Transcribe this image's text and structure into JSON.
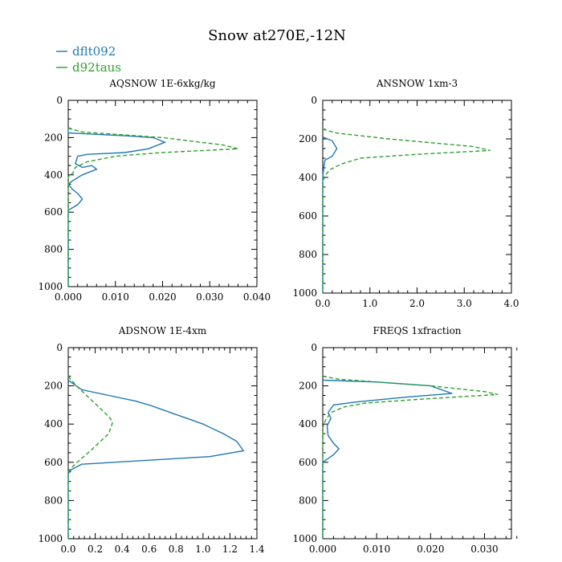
{
  "title": "Snow at270E,-12N",
  "legend": [
    {
      "name": "dflt092",
      "color": "#1f77b4",
      "dash": "solid"
    },
    {
      "name": "d92taus",
      "color": "#2ca02c",
      "dash": "dashed"
    }
  ],
  "chart_data": [
    {
      "type": "line",
      "title": "AQSNOW  1E-6xkg/kg",
      "xlim": [
        0,
        0.04
      ],
      "ylim": [
        0,
        1000
      ],
      "y_inverted": true,
      "xticks": [
        0,
        0.01,
        0.02,
        0.03,
        0.04
      ],
      "xtick_labels": [
        "0.000",
        "0.010",
        "0.020",
        "0.030",
        "0.040"
      ],
      "yticks": [
        0,
        200,
        400,
        600,
        800,
        1000
      ],
      "ytick_labels": [
        "0",
        "200",
        "400",
        "600",
        "800",
        "1000"
      ],
      "series": [
        {
          "name": "dflt092",
          "points": [
            [
              0,
              150
            ],
            [
              0,
              175
            ],
            [
              0.012,
              190
            ],
            [
              0.018,
              200
            ],
            [
              0.0205,
              225
            ],
            [
              0.017,
              260
            ],
            [
              0.012,
              280
            ],
            [
              0.004,
              290
            ],
            [
              0.002,
              300
            ],
            [
              0.0015,
              340
            ],
            [
              0.003,
              360
            ],
            [
              0.005,
              350
            ],
            [
              0.006,
              370
            ],
            [
              0.003,
              400
            ],
            [
              0.001,
              430
            ],
            [
              0,
              450
            ],
            [
              0.001,
              480
            ],
            [
              0.002,
              500
            ],
            [
              0.003,
              530
            ],
            [
              0.002,
              560
            ],
            [
              0,
              590
            ],
            [
              0,
              600
            ],
            [
              0,
              1000
            ]
          ]
        },
        {
          "name": "d92taus",
          "points": [
            [
              0,
              150
            ],
            [
              0.003,
              170
            ],
            [
              0.02,
              200
            ],
            [
              0.033,
              240
            ],
            [
              0.036,
              260
            ],
            [
              0.02,
              280
            ],
            [
              0.01,
              300
            ],
            [
              0.004,
              330
            ],
            [
              0.0015,
              360
            ],
            [
              0.001,
              390
            ],
            [
              0,
              410
            ],
            [
              0,
              1000
            ]
          ]
        }
      ]
    },
    {
      "type": "line",
      "title": "ANSNOW  1xm-3",
      "xlim": [
        0,
        4
      ],
      "ylim": [
        0,
        1000
      ],
      "y_inverted": true,
      "xticks": [
        0,
        1,
        2,
        3,
        4
      ],
      "xtick_labels": [
        "0.0",
        "1.0",
        "2.0",
        "3.0",
        "4.0"
      ],
      "yticks": [
        0,
        200,
        400,
        600,
        800,
        1000
      ],
      "ytick_labels": [
        "0",
        "200",
        "400",
        "600",
        "800",
        "1000"
      ],
      "series": [
        {
          "name": "dflt092",
          "points": [
            [
              0,
              190
            ],
            [
              0.2,
              210
            ],
            [
              0.3,
              250
            ],
            [
              0.2,
              290
            ],
            [
              0.05,
              310
            ],
            [
              0.02,
              350
            ],
            [
              0,
              400
            ],
            [
              0,
              1000
            ]
          ]
        },
        {
          "name": "d92taus",
          "points": [
            [
              0,
              150
            ],
            [
              0.3,
              170
            ],
            [
              1.4,
              200
            ],
            [
              3.2,
              240
            ],
            [
              3.55,
              260
            ],
            [
              2.0,
              280
            ],
            [
              0.8,
              300
            ],
            [
              0.4,
              330
            ],
            [
              0.15,
              360
            ],
            [
              0.05,
              390
            ],
            [
              0,
              420
            ],
            [
              0,
              1000
            ]
          ]
        }
      ]
    },
    {
      "type": "line",
      "title": "ADSNOW  1E-4xm",
      "xlim": [
        0,
        1.4
      ],
      "ylim": [
        0,
        1000
      ],
      "y_inverted": true,
      "xticks": [
        0,
        0.2,
        0.4,
        0.6,
        0.8,
        1.0,
        1.2,
        1.4
      ],
      "xtick_labels": [
        "0.0",
        "0.2",
        "0.4",
        "0.6",
        "0.8",
        "1.0",
        "1.2",
        "1.4"
      ],
      "yticks": [
        0,
        200,
        400,
        600,
        800,
        1000
      ],
      "ytick_labels": [
        "0",
        "200",
        "400",
        "600",
        "800",
        "1000"
      ],
      "series": [
        {
          "name": "dflt092",
          "points": [
            [
              0,
              170
            ],
            [
              0.1,
              220
            ],
            [
              0.3,
              250
            ],
            [
              0.5,
              280
            ],
            [
              0.6,
              300
            ],
            [
              0.8,
              350
            ],
            [
              1.0,
              400
            ],
            [
              1.15,
              450
            ],
            [
              1.25,
              490
            ],
            [
              1.3,
              540
            ],
            [
              1.05,
              570
            ],
            [
              0.1,
              610
            ],
            [
              0.02,
              640
            ],
            [
              0,
              660
            ],
            [
              0,
              1000
            ]
          ]
        },
        {
          "name": "d92taus",
          "points": [
            [
              0,
              150
            ],
            [
              0.06,
              200
            ],
            [
              0.18,
              280
            ],
            [
              0.3,
              360
            ],
            [
              0.33,
              390
            ],
            [
              0.3,
              450
            ],
            [
              0.18,
              530
            ],
            [
              0.1,
              580
            ],
            [
              0.05,
              610
            ],
            [
              0.01,
              640
            ],
            [
              0,
              650
            ],
            [
              0,
              1000
            ]
          ]
        }
      ]
    },
    {
      "type": "line",
      "title": "FREQS  1xfraction",
      "xlim": [
        0,
        0.035
      ],
      "ylim": [
        0,
        1000
      ],
      "y_inverted": true,
      "xticks": [
        0,
        0.01,
        0.02,
        0.03
      ],
      "xtick_labels": [
        "0.000",
        "0.010",
        "0.020",
        "0.030"
      ],
      "yticks": [
        0,
        200,
        400,
        600,
        800,
        1000
      ],
      "ytick_labels": [
        "0",
        "200",
        "400",
        "600",
        "800",
        "1000"
      ],
      "series": [
        {
          "name": "dflt092",
          "points": [
            [
              0,
              170
            ],
            [
              0.01,
              180
            ],
            [
              0.02,
              200
            ],
            [
              0.024,
              240
            ],
            [
              0.015,
              260
            ],
            [
              0.006,
              285
            ],
            [
              0.002,
              300
            ],
            [
              0.001,
              340
            ],
            [
              0.0015,
              370
            ],
            [
              0.0008,
              410
            ],
            [
              0.001,
              460
            ],
            [
              0.002,
              500
            ],
            [
              0.003,
              530
            ],
            [
              0.002,
              560
            ],
            [
              0,
              600
            ],
            [
              0,
              1000
            ]
          ]
        },
        {
          "name": "d92taus",
          "points": [
            [
              0,
              150
            ],
            [
              0.003,
              165
            ],
            [
              0.02,
              200
            ],
            [
              0.03,
              230
            ],
            [
              0.0325,
              245
            ],
            [
              0.018,
              270
            ],
            [
              0.008,
              290
            ],
            [
              0.004,
              310
            ],
            [
              0.0015,
              340
            ],
            [
              0.0005,
              380
            ],
            [
              0,
              420
            ],
            [
              0,
              1000
            ]
          ]
        }
      ]
    }
  ]
}
